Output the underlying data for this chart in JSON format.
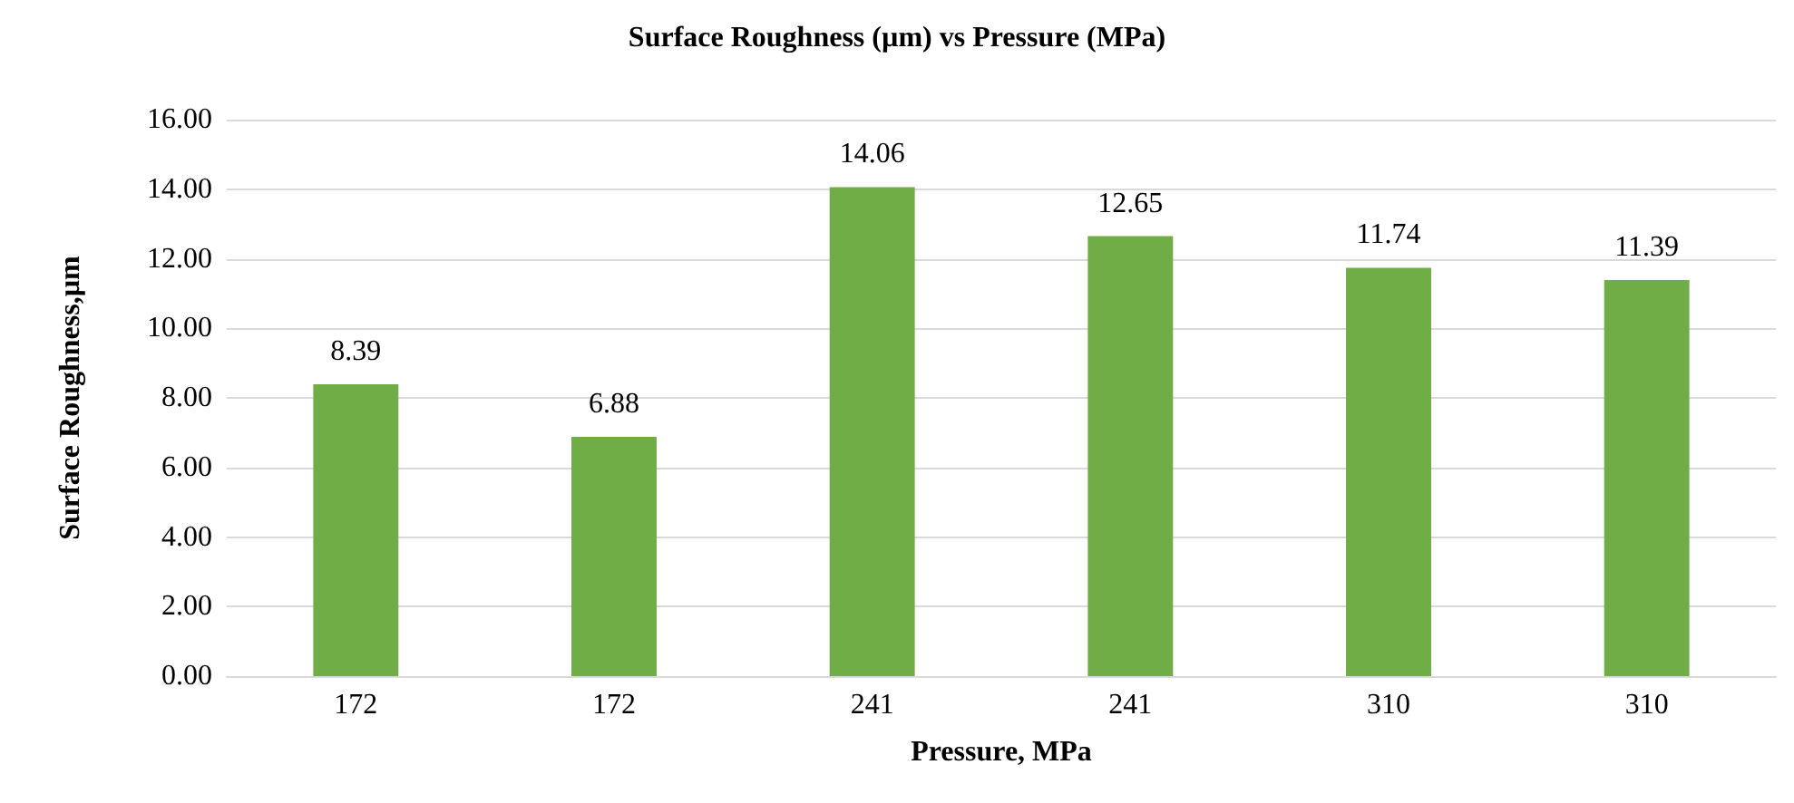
{
  "chart_data": {
    "type": "bar",
    "title": "Surface Roughness (µm) vs Pressure (MPa)",
    "xlabel": "Pressure, MPa",
    "ylabel": "Surface Roughness,µm",
    "categories": [
      "172",
      "172",
      "241",
      "241",
      "310",
      "310"
    ],
    "values": [
      8.39,
      6.88,
      14.06,
      12.65,
      11.74,
      11.39
    ],
    "color": "#70ad47",
    "ylim": [
      0,
      16
    ],
    "yticks": [
      {
        "value": 0,
        "label": "0.00"
      },
      {
        "value": 2,
        "label": "2.00"
      },
      {
        "value": 4,
        "label": "4.00"
      },
      {
        "value": 6,
        "label": "6.00"
      },
      {
        "value": 8,
        "label": "8.00"
      },
      {
        "value": 10,
        "label": "10.00"
      },
      {
        "value": 12,
        "label": "12.00"
      },
      {
        "value": 14,
        "label": "14.00"
      },
      {
        "value": 16,
        "label": "16.00"
      }
    ],
    "grid": "y",
    "data_labels": true
  }
}
